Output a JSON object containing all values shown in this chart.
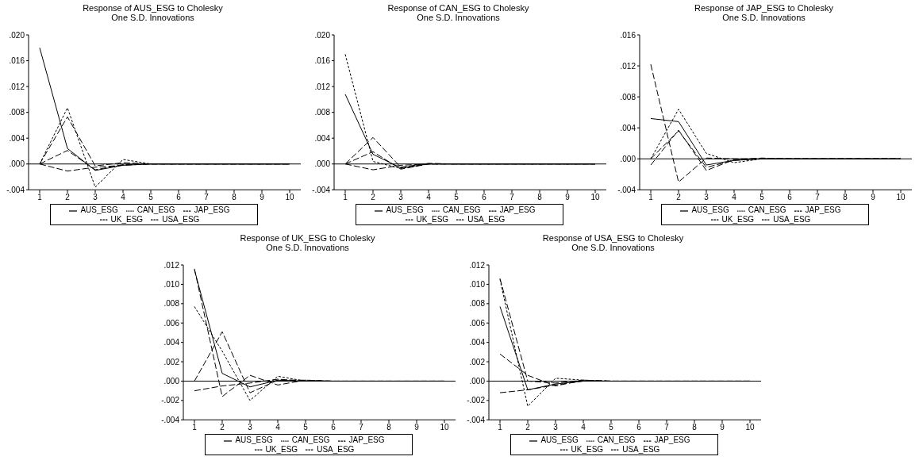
{
  "chart_data": [
    {
      "type": "line",
      "title": "Response of AUS_ESG to Cholesky",
      "subtitle": "One S.D. Innovations",
      "categories": [
        "1",
        "2",
        "3",
        "4",
        "5",
        "6",
        "7",
        "8",
        "9",
        "10"
      ],
      "ylim": [
        -0.004,
        0.02
      ],
      "yticks": [
        {
          "value": -0.004,
          "label": "-.004"
        },
        {
          "value": 0,
          "label": ".000"
        },
        {
          "value": 0.004,
          "label": ".004"
        },
        {
          "value": 0.008,
          "label": ".008"
        },
        {
          "value": 0.012,
          "label": ".012"
        },
        {
          "value": 0.016,
          "label": ".016"
        },
        {
          "value": 0.02,
          "label": ".020"
        }
      ],
      "grid": false,
      "legend": "bottom",
      "marker": "none",
      "ref_lines": [
        {
          "axis": "y",
          "value": 0,
          "color": "#000000"
        }
      ],
      "series": [
        {
          "name": "AUS_ESG",
          "color": "#000000",
          "line_style": "solid",
          "values": [
            0.018,
            0.0024,
            -0.001,
            -0.0002,
            0,
            0,
            0,
            0,
            0,
            0
          ]
        },
        {
          "name": "CAN_ESG",
          "color": "#000000",
          "line_style": "dotted",
          "values": [
            0,
            0.0087,
            -0.0036,
            0.0007,
            0,
            0,
            0,
            0,
            0,
            0
          ]
        },
        {
          "name": "JAP_ESG",
          "color": "#000000",
          "line_style": "dashed",
          "values": [
            0,
            0.0073,
            -0.0003,
            0.0002,
            0,
            0,
            0,
            0,
            0,
            0
          ]
        },
        {
          "name": "UK_ESG",
          "color": "#000000",
          "line_style": "dashed",
          "values": [
            0,
            -0.0011,
            -0.0005,
            -0.0002,
            0,
            0,
            0,
            0,
            0,
            0
          ]
        },
        {
          "name": "USA_ESG",
          "color": "#000000",
          "line_style": "dashed",
          "values": [
            0,
            0.0021,
            -0.0009,
            -0.0001,
            0,
            0,
            0,
            0,
            0,
            0
          ]
        }
      ]
    },
    {
      "type": "line",
      "title": "Response of CAN_ESG to Cholesky",
      "subtitle": "One S.D. Innovations",
      "categories": [
        "1",
        "2",
        "3",
        "4",
        "5",
        "6",
        "7",
        "8",
        "9",
        "10"
      ],
      "ylim": [
        -0.004,
        0.02
      ],
      "yticks": [
        {
          "value": -0.004,
          "label": "-.004"
        },
        {
          "value": 0,
          "label": ".000"
        },
        {
          "value": 0.004,
          "label": ".004"
        },
        {
          "value": 0.008,
          "label": ".008"
        },
        {
          "value": 0.012,
          "label": ".012"
        },
        {
          "value": 0.016,
          "label": ".016"
        },
        {
          "value": 0.02,
          "label": ".020"
        }
      ],
      "grid": false,
      "legend": "bottom",
      "marker": "none",
      "ref_lines": [
        {
          "axis": "y",
          "value": 0,
          "color": "#000000"
        }
      ],
      "series": [
        {
          "name": "AUS_ESG",
          "color": "#000000",
          "line_style": "solid",
          "values": [
            0.0108,
            0.0015,
            -0.0006,
            0,
            0,
            0,
            0,
            0,
            0,
            0
          ]
        },
        {
          "name": "CAN_ESG",
          "color": "#000000",
          "line_style": "dotted",
          "values": [
            0.017,
            0.0004,
            -0.0007,
            0,
            0,
            0,
            0,
            0,
            0,
            0
          ]
        },
        {
          "name": "JAP_ESG",
          "color": "#000000",
          "line_style": "dashed",
          "values": [
            0,
            0.0041,
            -0.0005,
            0.0001,
            0,
            0,
            0,
            0,
            0,
            0
          ]
        },
        {
          "name": "UK_ESG",
          "color": "#000000",
          "line_style": "dashed",
          "values": [
            0,
            -0.0009,
            -0.0002,
            0,
            0,
            0,
            0,
            0,
            0,
            0
          ]
        },
        {
          "name": "USA_ESG",
          "color": "#000000",
          "line_style": "dashed",
          "values": [
            0,
            0.0019,
            -0.0008,
            0,
            0,
            0,
            0,
            0,
            0,
            0
          ]
        }
      ]
    },
    {
      "type": "line",
      "title": "Response of JAP_ESG to Cholesky",
      "subtitle": "One S.D. Innovations",
      "categories": [
        "1",
        "2",
        "3",
        "4",
        "5",
        "6",
        "7",
        "8",
        "9",
        "10"
      ],
      "ylim": [
        -0.004,
        0.016
      ],
      "yticks": [
        {
          "value": -0.004,
          "label": "-.004"
        },
        {
          "value": 0,
          "label": ".000"
        },
        {
          "value": 0.004,
          "label": ".004"
        },
        {
          "value": 0.008,
          "label": ".008"
        },
        {
          "value": 0.012,
          "label": ".012"
        },
        {
          "value": 0.016,
          "label": ".016"
        }
      ],
      "grid": false,
      "legend": "bottom",
      "marker": "none",
      "ref_lines": [
        {
          "axis": "y",
          "value": 0,
          "color": "#000000"
        }
      ],
      "series": [
        {
          "name": "AUS_ESG",
          "color": "#000000",
          "line_style": "solid",
          "values": [
            0.0052,
            0.0048,
            -0.0008,
            -0.0002,
            0,
            0,
            0,
            0,
            0,
            0
          ]
        },
        {
          "name": "CAN_ESG",
          "color": "#000000",
          "line_style": "dotted",
          "values": [
            0,
            0.0064,
            0.0007,
            -0.0005,
            0,
            0,
            0,
            0,
            0,
            0
          ]
        },
        {
          "name": "JAP_ESG",
          "color": "#000000",
          "line_style": "dashed",
          "values": [
            0.0122,
            -0.003,
            0.0001,
            0,
            0,
            0,
            0,
            0,
            0,
            0
          ]
        },
        {
          "name": "UK_ESG",
          "color": "#000000",
          "line_style": "dashed",
          "values": [
            -0.0008,
            0.0037,
            -0.0015,
            -0.0001,
            0.0001,
            0,
            0,
            0,
            0,
            0
          ]
        },
        {
          "name": "USA_ESG",
          "color": "#000000",
          "line_style": "dashed",
          "values": [
            0,
            0.0036,
            -0.0011,
            -0.0002,
            0,
            0,
            0,
            0,
            0,
            0
          ]
        }
      ]
    },
    {
      "type": "line",
      "title": "Response of UK_ESG to Cholesky",
      "subtitle": "One S.D. Innovations",
      "categories": [
        "1",
        "2",
        "3",
        "4",
        "5",
        "6",
        "7",
        "8",
        "9",
        "10"
      ],
      "ylim": [
        -0.004,
        0.012
      ],
      "yticks": [
        {
          "value": -0.004,
          "label": "-.004"
        },
        {
          "value": -0.002,
          "label": "-.002"
        },
        {
          "value": 0,
          "label": ".000"
        },
        {
          "value": 0.002,
          "label": ".002"
        },
        {
          "value": 0.004,
          "label": ".004"
        },
        {
          "value": 0.006,
          "label": ".006"
        },
        {
          "value": 0.008,
          "label": ".008"
        },
        {
          "value": 0.01,
          "label": ".010"
        },
        {
          "value": 0.012,
          "label": ".012"
        }
      ],
      "grid": false,
      "legend": "bottom",
      "marker": "none",
      "ref_lines": [
        {
          "axis": "y",
          "value": 0,
          "color": "#000000"
        }
      ],
      "series": [
        {
          "name": "AUS_ESG",
          "color": "#000000",
          "line_style": "solid",
          "values": [
            0.0115,
            0.0008,
            -0.0006,
            0.0001,
            0,
            0,
            0,
            0,
            0,
            0
          ]
        },
        {
          "name": "CAN_ESG",
          "color": "#000000",
          "line_style": "dotted",
          "values": [
            0.0077,
            0.0031,
            -0.002,
            0.0005,
            0,
            0,
            0,
            0,
            0,
            0
          ]
        },
        {
          "name": "JAP_ESG",
          "color": "#000000",
          "line_style": "dashed",
          "values": [
            0,
            0.0051,
            -0.0012,
            0.0001,
            0.0001,
            0,
            0,
            0,
            0,
            0
          ]
        },
        {
          "name": "UK_ESG",
          "color": "#000000",
          "line_style": "dashed",
          "values": [
            0.0116,
            -0.0016,
            0.0006,
            -0.0004,
            0.0001,
            0,
            0,
            0,
            0,
            0
          ]
        },
        {
          "name": "USA_ESG",
          "color": "#000000",
          "line_style": "dashed",
          "values": [
            -0.001,
            -0.0005,
            -0.0002,
            0.0002,
            0,
            0,
            0,
            0,
            0,
            0
          ]
        }
      ]
    },
    {
      "type": "line",
      "title": "Response of USA_ESG to Cholesky",
      "subtitle": "One S.D. Innovations",
      "categories": [
        "1",
        "2",
        "3",
        "4",
        "5",
        "6",
        "7",
        "8",
        "9",
        "10"
      ],
      "ylim": [
        -0.004,
        0.012
      ],
      "yticks": [
        {
          "value": -0.004,
          "label": "-.004"
        },
        {
          "value": -0.002,
          "label": "-.002"
        },
        {
          "value": 0,
          "label": ".000"
        },
        {
          "value": 0.002,
          "label": ".002"
        },
        {
          "value": 0.004,
          "label": ".004"
        },
        {
          "value": 0.006,
          "label": ".006"
        },
        {
          "value": 0.008,
          "label": ".008"
        },
        {
          "value": 0.01,
          "label": ".010"
        },
        {
          "value": 0.012,
          "label": ".012"
        }
      ],
      "grid": false,
      "legend": "bottom",
      "marker": "none",
      "ref_lines": [
        {
          "axis": "y",
          "value": 0,
          "color": "#000000"
        }
      ],
      "series": [
        {
          "name": "AUS_ESG",
          "color": "#000000",
          "line_style": "solid",
          "values": [
            0.0077,
            -0.0009,
            -0.0003,
            0,
            0,
            0,
            0,
            0,
            0,
            0
          ]
        },
        {
          "name": "CAN_ESG",
          "color": "#000000",
          "line_style": "dotted",
          "values": [
            0.0105,
            -0.0026,
            0.0003,
            0.0001,
            0,
            0,
            0,
            0,
            0,
            0
          ]
        },
        {
          "name": "JAP_ESG",
          "color": "#000000",
          "line_style": "dashed",
          "values": [
            0.0028,
            0.0006,
            -0.0005,
            0.0001,
            0,
            0,
            0,
            0,
            0,
            0
          ]
        },
        {
          "name": "UK_ESG",
          "color": "#000000",
          "line_style": "dashed",
          "values": [
            -0.0012,
            -0.0009,
            -0.0004,
            0,
            0,
            0,
            0,
            0,
            0,
            0
          ]
        },
        {
          "name": "USA_ESG",
          "color": "#000000",
          "line_style": "dashed",
          "values": [
            0.0106,
            0,
            -0.0002,
            0.0001,
            0,
            0,
            0,
            0,
            0,
            0
          ]
        }
      ]
    }
  ]
}
